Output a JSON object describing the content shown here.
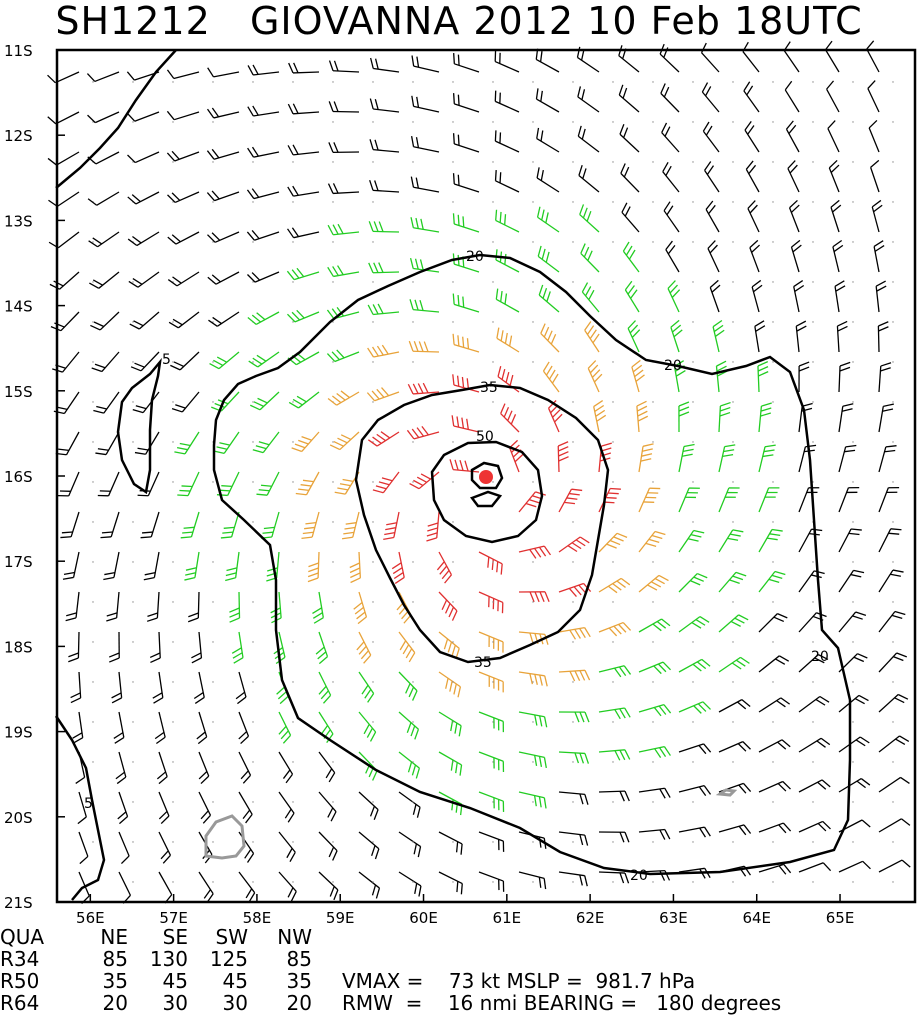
{
  "title": "SH1212   GIOVANNA 2012 10 Feb 18UTC",
  "map": {
    "lat_labels": [
      "11S",
      "12S",
      "13S",
      "14S",
      "15S",
      "16S",
      "17S",
      "18S",
      "19S",
      "20S",
      "21S"
    ],
    "lon_labels": [
      "56E",
      "57E",
      "58E",
      "59E",
      "60E",
      "61E",
      "62E",
      "63E",
      "64E",
      "65E"
    ],
    "contour_labels": {
      "c20_top": "20",
      "c20_right_upper": "20",
      "c20_right_lower": "20",
      "c20_bottom": "20",
      "c35_top": "35",
      "c35_bottom": "35",
      "c50": "50",
      "c5_upper": "5",
      "c5_lower": "5"
    },
    "colors": {
      "background": "#ffffff",
      "contour": "#000000",
      "barb_weak": "#000000",
      "barb_34kt": "#22cc22",
      "barb_50kt": "#e8a33a",
      "barb_64kt": "#e03030",
      "center_marker": "#ee3333",
      "land": "#999999"
    },
    "center_marker_icon": "storm-center-dot-icon"
  },
  "table": {
    "headers": [
      "QUA",
      "NE",
      "SE",
      "SW",
      "NW"
    ],
    "rows": [
      {
        "label": "R34",
        "ne": "85",
        "se": "130",
        "sw": "125",
        "nw": "85"
      },
      {
        "label": "R50",
        "ne": "35",
        "se": "45",
        "sw": "45",
        "nw": "35"
      },
      {
        "label": "R64",
        "ne": "20",
        "se": "30",
        "sw": "30",
        "nw": "20"
      }
    ]
  },
  "stats": {
    "line1": "VMAX =    73 kt MSLP =  981.7 hPa",
    "line2": "RMW  =    16 nmi BEARING =   180 degrees"
  }
}
